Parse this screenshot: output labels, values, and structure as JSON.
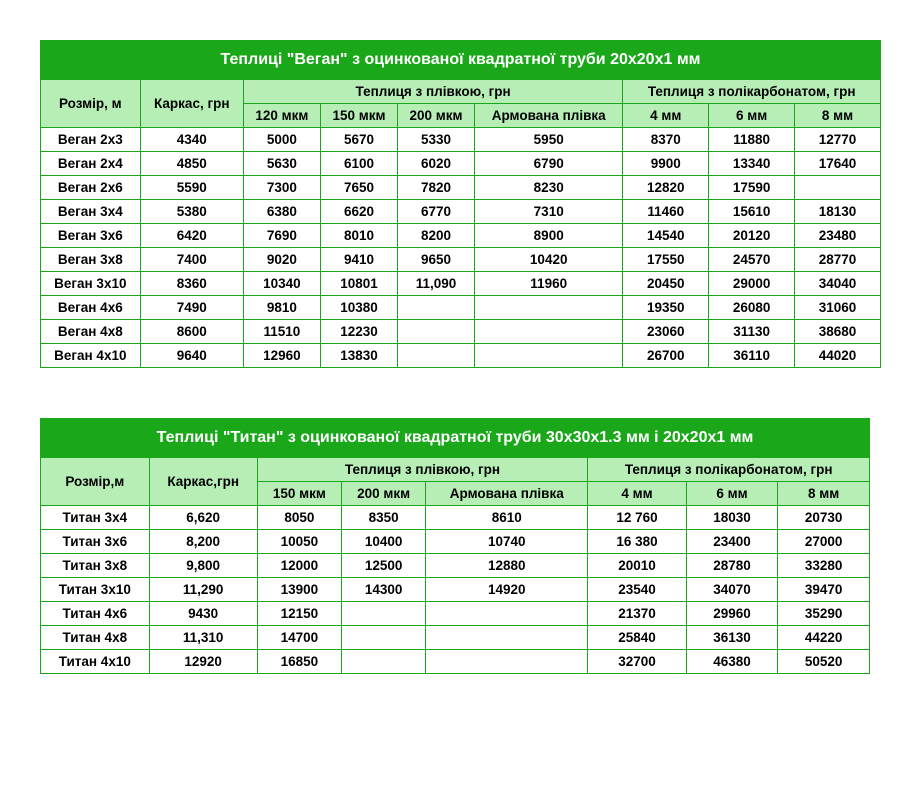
{
  "colors": {
    "border": "#1aa81a",
    "header_bg": "#1aa81a",
    "header_text": "#ffffff",
    "subheader_bg": "#b6eeb6",
    "cell_bg": "#ffffff",
    "cell_text": "#000000"
  },
  "tables": [
    {
      "id": "vegan",
      "title": "Теплиці \"Веган\" з оцинкованої квадратної труби 20х20х1 мм",
      "group_headers": {
        "size": "Розмір, м",
        "frame": "Каркас, грн",
        "film": "Теплиця з плівкою, грн",
        "poly": "Теплиця з полікарбонатом, грн"
      },
      "sub_headers_film": [
        "120 мкм",
        "150 мкм",
        "200 мкм",
        "Армована плівка"
      ],
      "sub_headers_poly": [
        "4 мм",
        "6 мм",
        "8 мм"
      ],
      "rows": [
        {
          "name": "Веган 2х3",
          "frame": "4340",
          "c": [
            "5000",
            "5670",
            "5330",
            "5950",
            "8370",
            "11880",
            "12770"
          ]
        },
        {
          "name": "Веган 2х4",
          "frame": "4850",
          "c": [
            "5630",
            "6100",
            "6020",
            "6790",
            "9900",
            "13340",
            "17640"
          ]
        },
        {
          "name": "Веган 2х6",
          "frame": "5590",
          "c": [
            "7300",
            "7650",
            "7820",
            "8230",
            "12820",
            "17590",
            ""
          ]
        },
        {
          "name": "Веган 3х4",
          "frame": "5380",
          "c": [
            "6380",
            "6620",
            "6770",
            "7310",
            "11460",
            "15610",
            "18130"
          ]
        },
        {
          "name": "Веган 3х6",
          "frame": "6420",
          "c": [
            "7690",
            "8010",
            "8200",
            "8900",
            "14540",
            "20120",
            "23480"
          ]
        },
        {
          "name": "Веган 3х8",
          "frame": "7400",
          "c": [
            "9020",
            "9410",
            "9650",
            "10420",
            "17550",
            "24570",
            "28770"
          ]
        },
        {
          "name": "Веган 3х10",
          "frame": "8360",
          "c": [
            "10340",
            "10801",
            "11,090",
            "11960",
            "20450",
            "29000",
            "34040"
          ]
        },
        {
          "name": "Веган 4х6",
          "frame": "7490",
          "c": [
            "9810",
            "10380",
            "",
            "",
            "19350",
            "26080",
            "31060"
          ]
        },
        {
          "name": "Веган 4х8",
          "frame": "8600",
          "c": [
            "11510",
            "12230",
            "",
            "",
            "23060",
            "31130",
            "38680"
          ]
        },
        {
          "name": "Веган 4х10",
          "frame": "9640",
          "c": [
            "12960",
            "13830",
            "",
            "",
            "26700",
            "36110",
            "44020"
          ]
        }
      ]
    },
    {
      "id": "titan",
      "title": "Теплиці \"Титан\" з оцинкованої квадратної труби 30х30х1.3 мм і 20х20х1 мм",
      "group_headers": {
        "size": "Розмір,м",
        "frame": "Каркас,грн",
        "film": "Теплиця з плівкою, грн",
        "poly": "Теплиця з полікарбонатом, грн"
      },
      "sub_headers_film": [
        "150 мкм",
        "200 мкм",
        "Армована плівка"
      ],
      "sub_headers_poly": [
        "4 мм",
        "6 мм",
        "8 мм"
      ],
      "rows": [
        {
          "name": "Титан 3х4",
          "frame": "6,620",
          "c": [
            "8050",
            "8350",
            "8610",
            "12 760",
            "18030",
            "20730"
          ]
        },
        {
          "name": "Титан 3х6",
          "frame": "8,200",
          "c": [
            "10050",
            "10400",
            "10740",
            "16 380",
            "23400",
            "27000"
          ]
        },
        {
          "name": "Титан 3х8",
          "frame": "9,800",
          "c": [
            "12000",
            "12500",
            "12880",
            "20010",
            "28780",
            "33280"
          ]
        },
        {
          "name": "Титан 3х10",
          "frame": "11,290",
          "c": [
            "13900",
            "14300",
            "14920",
            "23540",
            "34070",
            "39470"
          ]
        },
        {
          "name": "Титан 4х6",
          "frame": "9430",
          "c": [
            "12150",
            "",
            "",
            "21370",
            "29960",
            "35290"
          ]
        },
        {
          "name": "Титан 4х8",
          "frame": "11,310",
          "c": [
            "14700",
            "",
            "",
            "25840",
            "36130",
            "44220"
          ]
        },
        {
          "name": "Титан 4х10",
          "frame": "12920",
          "c": [
            "16850",
            "",
            "",
            "32700",
            "46380",
            "50520"
          ]
        }
      ]
    }
  ]
}
